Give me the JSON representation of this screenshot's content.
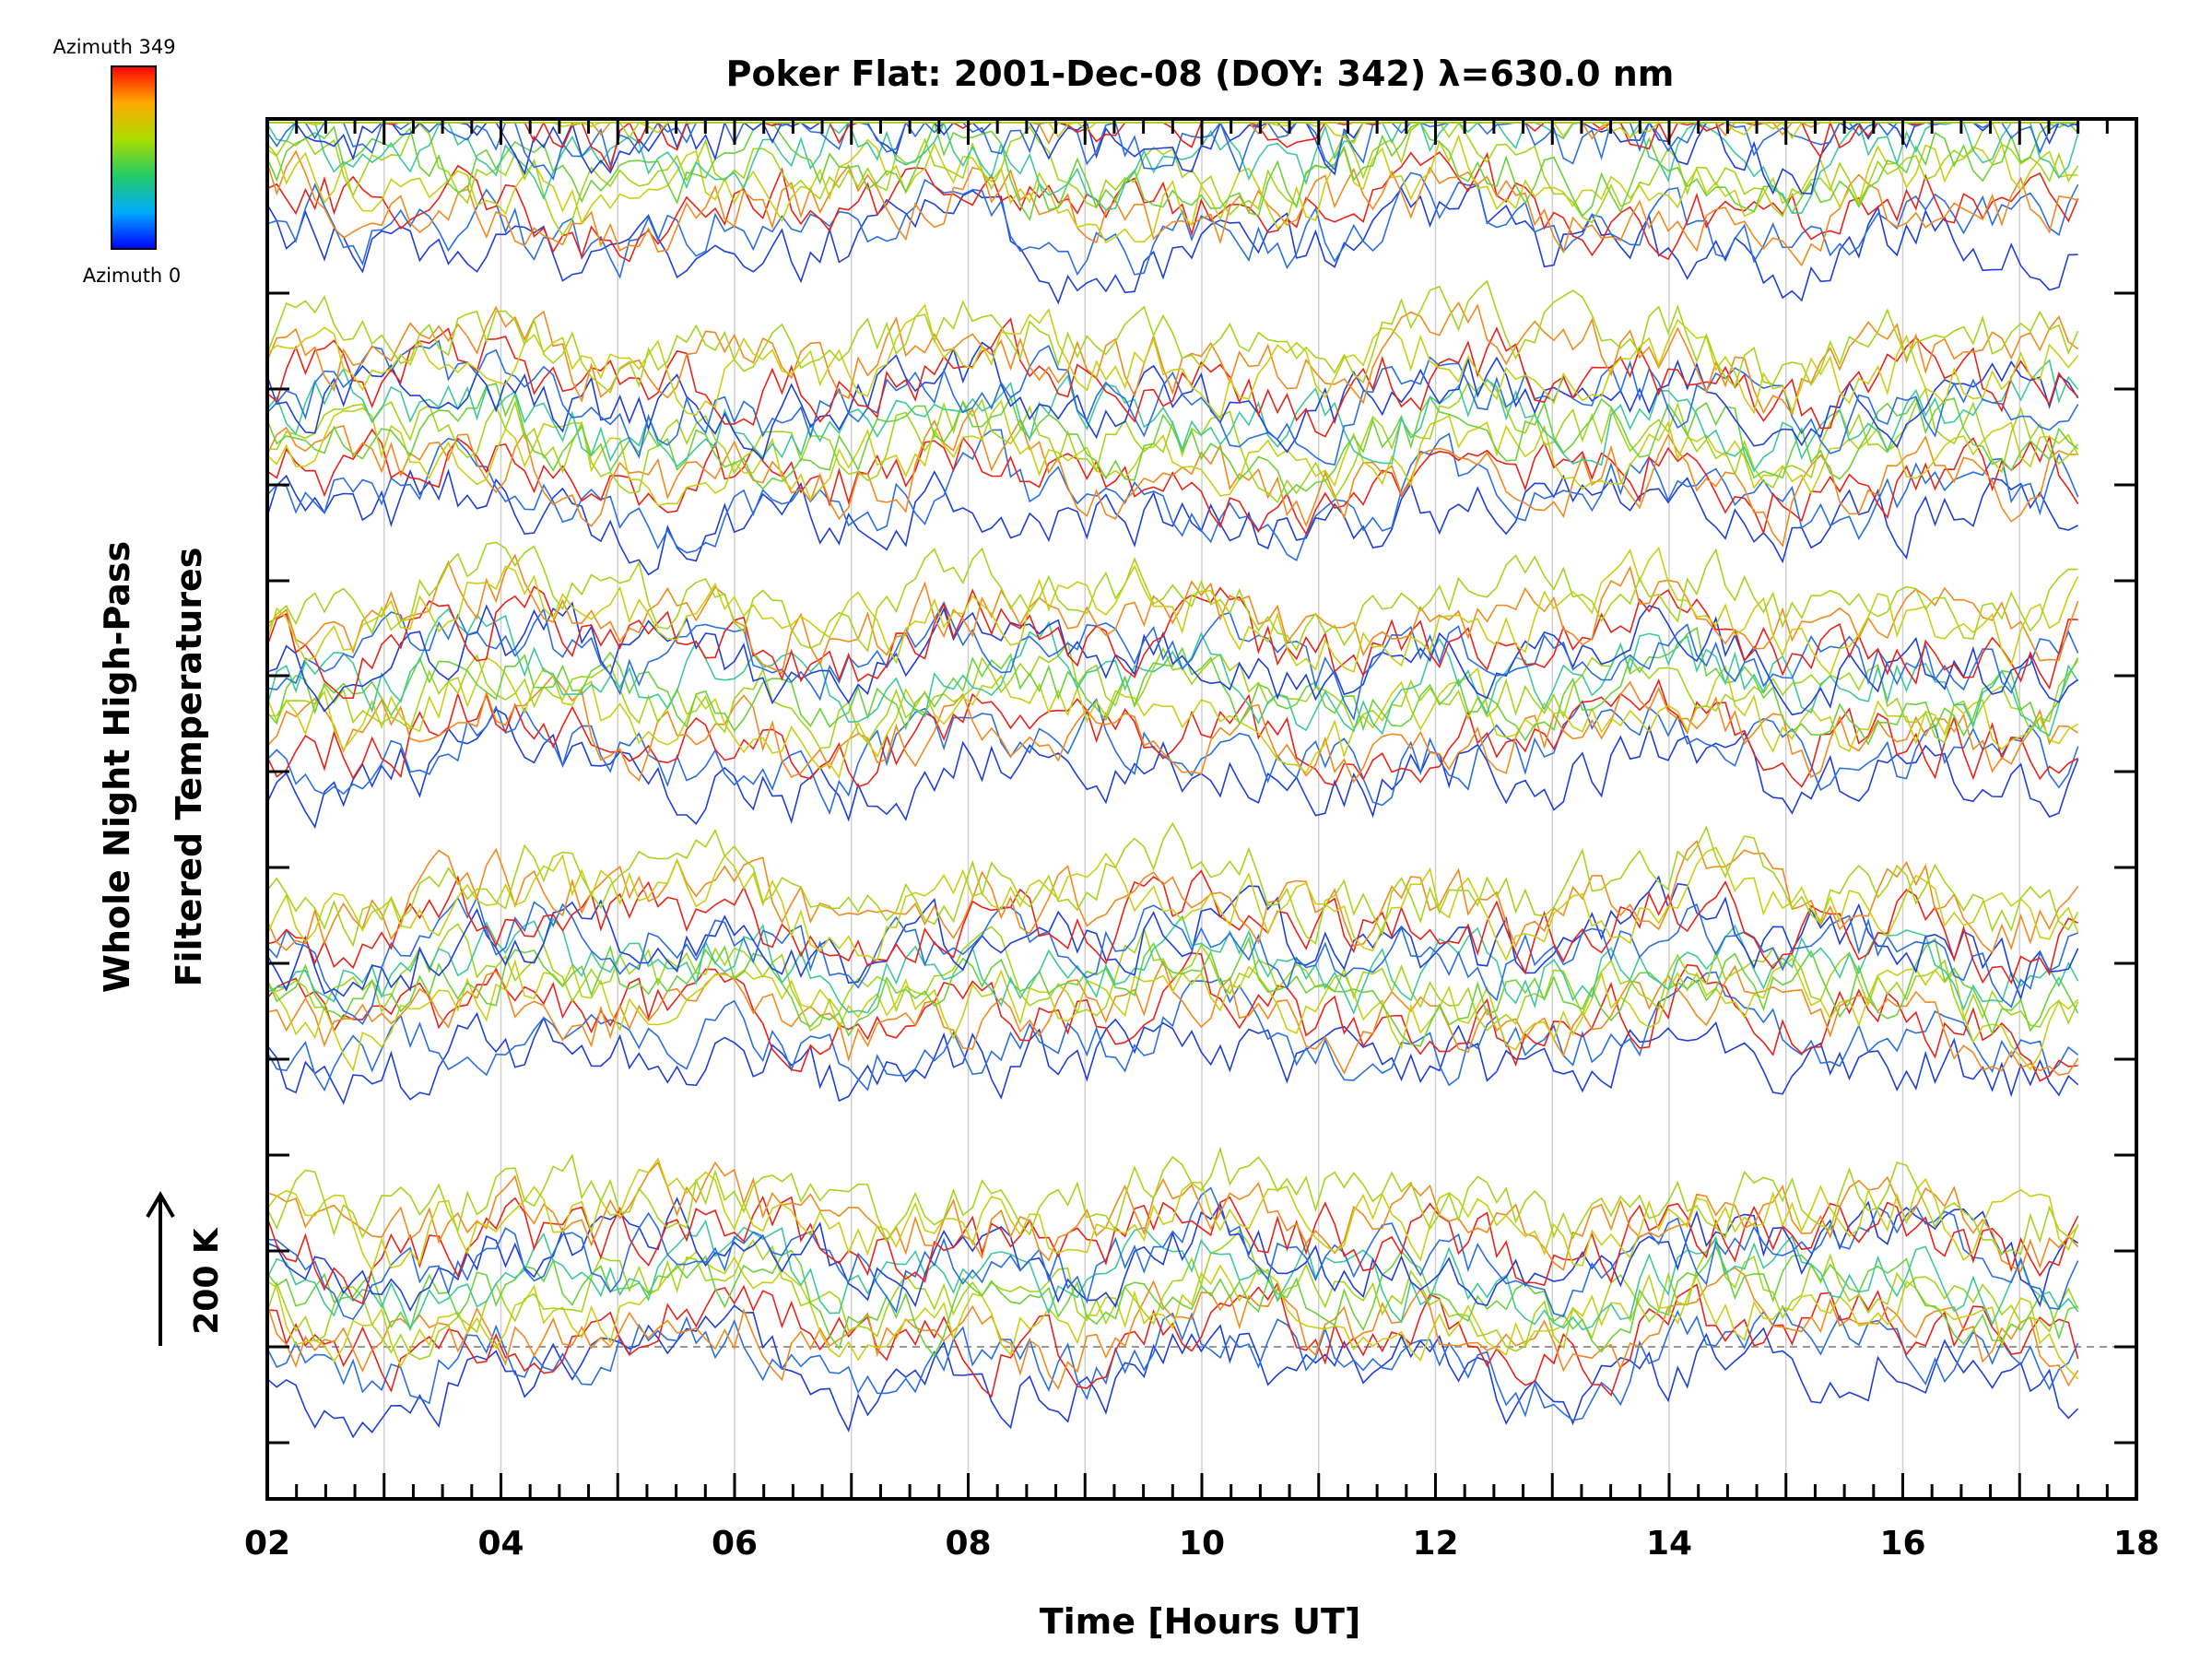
{
  "chart_data": {
    "type": "line",
    "title": "Poker Flat: 2001-Dec-08 (DOY: 342) λ=630.0 nm",
    "xlabel": "Time [Hours UT]",
    "ylabel_line1": "Whole Night High-Pass",
    "ylabel_line2": "Filtered Temperatures",
    "xlim": [
      2,
      18
    ],
    "x_tick_labels": [
      "02",
      "04",
      "06",
      "08",
      "10",
      "12",
      "14",
      "16",
      "18"
    ],
    "x_data_range": [
      2.0,
      17.5
    ],
    "grid": "vertical lines at whole hours",
    "colorbar": {
      "top_label": "Azimuth 349",
      "bottom_label": "Azimuth 0",
      "colors": [
        "#0000ff",
        "#00aaff",
        "#22cc66",
        "#aadd00",
        "#ffaa00",
        "#ff0000"
      ],
      "placement": "top-left"
    },
    "scale_indicator": {
      "label": "200 K",
      "placement": "left"
    },
    "series_colors": [
      "#1f3fd6",
      "#2a6fe0",
      "#e8231a",
      "#f08a1f",
      "#c9cf12",
      "#a6d41c",
      "#6cd13a",
      "#3fc89a"
    ]
  }
}
